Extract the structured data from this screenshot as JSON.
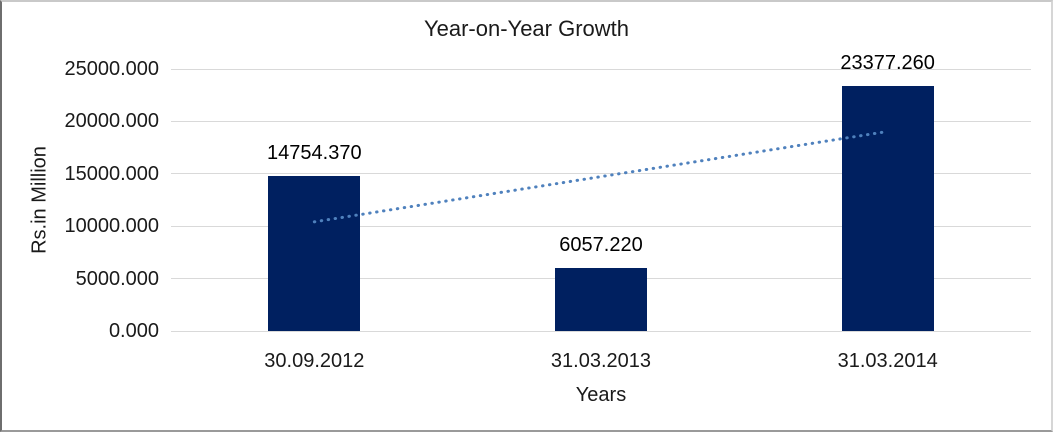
{
  "chart_data": {
    "type": "bar",
    "title": "Year-on-Year Growth",
    "xlabel": "Years",
    "ylabel": "Rs.in Million",
    "categories": [
      "30.09.2012",
      "31.03.2013",
      "31.03.2014"
    ],
    "values": [
      14754.37,
      6057.22,
      23377.26
    ],
    "value_labels": [
      "14754.370",
      "6057.220",
      "23377.260"
    ],
    "ylim": [
      0,
      25000
    ],
    "ytick_step": 5000,
    "ytick_labels": [
      "0.000",
      "5000.000",
      "10000.000",
      "15000.000",
      "20000.000",
      "25000.000"
    ],
    "grid": true,
    "legend": "none",
    "colors": {
      "bar": "#002060",
      "gridline": "#d9d9d9",
      "trendline": "#4f81bd",
      "text": "#1a1a1a"
    },
    "trendline": {
      "type": "linear",
      "style": "dotted",
      "color": "#4f81bd"
    }
  }
}
